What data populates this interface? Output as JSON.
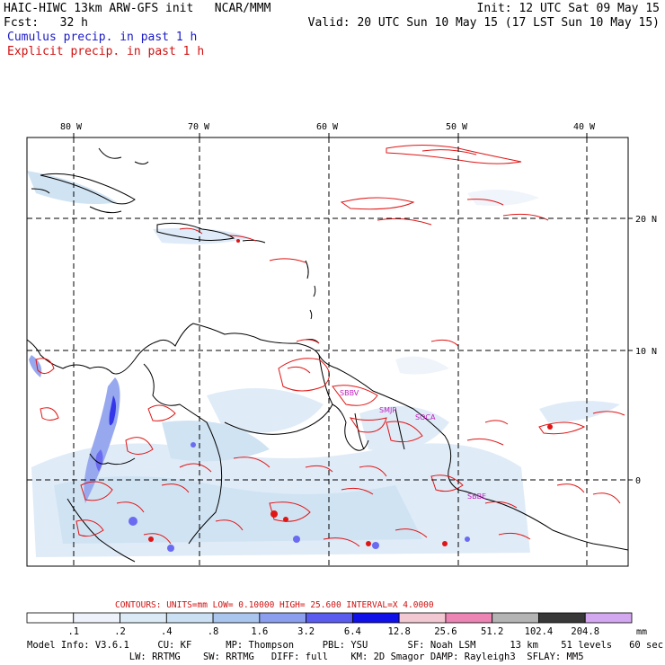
{
  "header": {
    "line1_left": "HAIC-HIWC 13km ARW-GFS init   NCAR/MMM",
    "line1_right": "Init: 12 UTC Sat 09 May 15",
    "line2_left": "Fcst:   32 h",
    "line2_right": "Valid: 20 UTC Sun 10 May 15 (17 LST Sun 10 May 15)",
    "legend_cumulus": "Cumulus precip. in past 1 h",
    "legend_explicit": "Explicit precip. in past 1 h"
  },
  "map": {
    "lon_labels": [
      "80 W",
      "70 W",
      "60 W",
      "50 W",
      "40 W"
    ],
    "lat_labels": [
      "20 N",
      "10 N",
      "0"
    ],
    "station_labels": [
      "SBBV",
      "SMJP",
      "SOCA",
      "SBBE"
    ]
  },
  "contours_line": "CONTOURS:  UNITS=mm  LOW= 0.10000     HIGH=  25.600     INTERVAL=X  4.0000",
  "colorbar": {
    "unit": "mm",
    "labels": [
      ".1",
      ".2",
      ".4",
      ".8",
      "1.6",
      "3.2",
      "6.4",
      "12.8",
      "25.6",
      "51.2",
      "102.4",
      "204.8"
    ],
    "colors": [
      "#ffffff",
      "#eef3fb",
      "#dce9f7",
      "#cbe0f2",
      "#aac5ee",
      "#8c9fee",
      "#5a5cf0",
      "#1010e8",
      "#f2c8d2",
      "#ec84b4",
      "#b4b4b4",
      "#383838",
      "#d4a8f0"
    ]
  },
  "model_info": {
    "line1": "Model Info: V3.6.1     CU: KF      MP: Thompson     PBL: YSU       SF: Noah LSM      13 km    51 levels   60 sec",
    "line2": "                  LW: RRTMG    SW: RRTMG   DIFF: full    KM: 2D Smagor DAMP: Rayleigh3  SFLAY: MM5"
  }
}
